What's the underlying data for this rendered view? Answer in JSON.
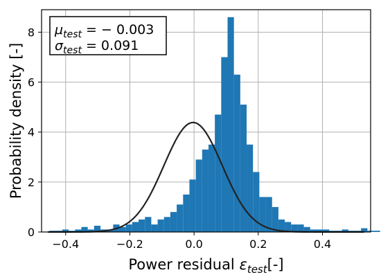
{
  "chart_data": {
    "type": "bar",
    "subtype": "histogram",
    "xlabel": "Power residual ε_test[-]",
    "ylabel": "Probability density [-]",
    "xlim": [
      -0.475,
      0.55
    ],
    "ylim": [
      0,
      8.9
    ],
    "xticks": [
      -0.4,
      -0.2,
      0.0,
      0.2,
      0.4
    ],
    "xtick_labels": [
      "−0.4",
      "−0.2",
      "0.0",
      "0.2",
      "0.4"
    ],
    "yticks": [
      0,
      2,
      4,
      6,
      8
    ],
    "ytick_labels": [
      "0",
      "2",
      "4",
      "6",
      "8"
    ],
    "grid": true,
    "bar_color": "#1f77b4",
    "curve_color": "#222222",
    "annotation": {
      "line1": "μtest = − 0.003",
      "line2": "σtest = 0.091",
      "line1_symbol": "μ",
      "line1_sub": "test",
      "line1_rest": " = − 0.003",
      "line2_symbol": "σ",
      "line2_sub": "test",
      "line2_rest": " = 0.091",
      "placement": "top-left"
    },
    "bins": {
      "start": -0.45,
      "width": 0.0198,
      "densities": [
        0.05,
        0.05,
        0.1,
        0.05,
        0.1,
        0.2,
        0.1,
        0.25,
        0.1,
        0.1,
        0.3,
        0.2,
        0.3,
        0.4,
        0.5,
        0.6,
        0.3,
        0.5,
        0.6,
        0.8,
        1.1,
        1.5,
        2.1,
        2.9,
        3.3,
        3.5,
        4.7,
        7.0,
        8.6,
        6.3,
        5.1,
        3.5,
        2.4,
        1.4,
        1.4,
        1.0,
        0.5,
        0.4,
        0.3,
        0.3,
        0.2,
        0.1,
        0.1,
        0.1,
        0.05,
        0.05,
        0.1,
        0.05,
        0.05,
        0.15,
        0.05,
        0.05
      ]
    },
    "curve": {
      "type": "normal_pdf",
      "mean": -0.003,
      "std": 0.091
    }
  }
}
